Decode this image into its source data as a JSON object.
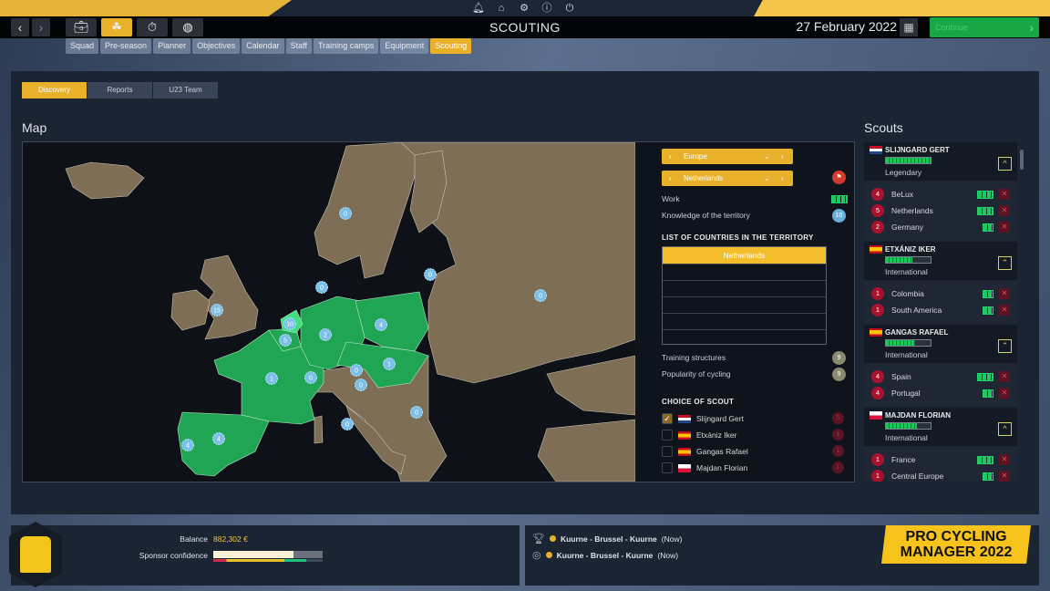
{
  "top_icons": [
    "bell-icon",
    "home-icon",
    "gear-icon",
    "info-icon",
    "power-icon"
  ],
  "header": {
    "title": "SCOUTING",
    "date": "27 February 2022",
    "continue_label": "Continue"
  },
  "mode_buttons": [
    "briefcase-icon",
    "team-icon",
    "stopwatch-icon",
    "globe-icon"
  ],
  "subtabs": [
    "Squad",
    "Pre-season",
    "Planner",
    "Objectives",
    "Calendar",
    "Staff",
    "Training camps",
    "Equipment",
    "Scouting"
  ],
  "active_subtab": "Scouting",
  "tabs": [
    "Discovery",
    "Reports",
    "U23 Team"
  ],
  "active_tab": "Discovery",
  "map": {
    "title": "Map",
    "markers": [
      "0",
      "15",
      "0",
      "0",
      "0",
      "10",
      "5",
      "2",
      "4",
      "1",
      "0",
      "0",
      "1",
      "0",
      "0",
      "0",
      "4",
      "4"
    ]
  },
  "territory": {
    "region": "Europe",
    "country": "Netherlands",
    "work_label": "Work",
    "knowledge_label": "Knowledge of the territory",
    "knowledge_value": "10",
    "list_title": "LIST OF COUNTRIES IN THE TERRITORY",
    "countries": [
      "Netherlands"
    ],
    "training_label": "Training structures",
    "training_value": "9",
    "popularity_label": "Popularity of cycling",
    "popularity_value": "9",
    "choice_title": "CHOICE OF SCOUT",
    "choices": [
      {
        "name": "Slijngard Gert",
        "flag": "nl",
        "count": "5",
        "checked": true
      },
      {
        "name": "Etxániz Iker",
        "flag": "es",
        "count": "1",
        "checked": false
      },
      {
        "name": "Gangas Rafael",
        "flag": "es",
        "count": "1",
        "checked": false
      },
      {
        "name": "Majdan Florian",
        "flag": "pl",
        "count": "1",
        "checked": false
      }
    ]
  },
  "scouts": {
    "title": "Scouts",
    "list": [
      {
        "name": "SLIJNGARD GERT",
        "flag": "nl",
        "rank": "Legendary",
        "level": 1.0,
        "regions": [
          {
            "n": "4",
            "name": "BeLux",
            "work": 3
          },
          {
            "n": "5",
            "name": "Netherlands",
            "work": 3
          },
          {
            "n": "2",
            "name": "Germany",
            "work": 2
          }
        ]
      },
      {
        "name": "ETXÁNIZ IKER",
        "flag": "es",
        "rank": "International",
        "level": 0.6,
        "regions": [
          {
            "n": "1",
            "name": "Colombia",
            "work": 2
          },
          {
            "n": "1",
            "name": "South America",
            "work": 2
          }
        ]
      },
      {
        "name": "GANGAS RAFAEL",
        "flag": "es",
        "rank": "International",
        "level": 0.65,
        "regions": [
          {
            "n": "4",
            "name": "Spain",
            "work": 3
          },
          {
            "n": "4",
            "name": "Portugal",
            "work": 2
          }
        ]
      },
      {
        "name": "MAJDAN FLORIAN",
        "flag": "pl",
        "rank": "International",
        "level": 0.7,
        "regions": [
          {
            "n": "1",
            "name": "France",
            "work": 3
          },
          {
            "n": "1",
            "name": "Central Europe",
            "work": 2
          }
        ]
      }
    ]
  },
  "footer": {
    "balance_label": "Balance",
    "balance": "882,302 €",
    "sponsor_label": "Sponsor confidence",
    "sponsor_level": 0.73,
    "races": [
      {
        "icon": "trophy-icon",
        "name": "Kuurne - Brussel - Kuurne",
        "when": "(Now)"
      },
      {
        "icon": "race-icon",
        "name": "Kuurne - Brussel - Kuurne",
        "when": "(Now)"
      }
    ],
    "logo_line1": "PRO CYCLING",
    "logo_line2": "MANAGER 2022"
  },
  "colors": {
    "accent": "#e9b02a",
    "green": "#18a745",
    "territory_green": "#1fa553",
    "land": "#7d6e55"
  }
}
